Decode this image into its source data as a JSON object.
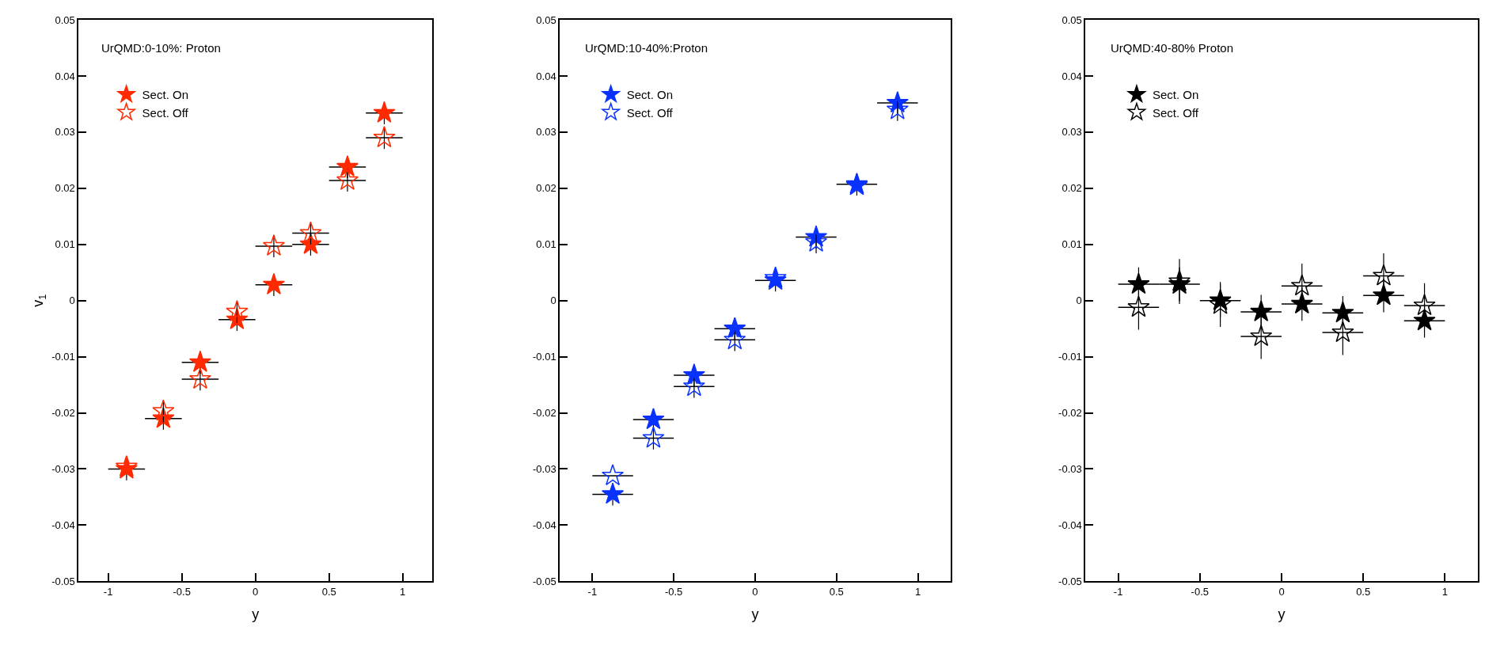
{
  "chart_data": [
    {
      "type": "scatter",
      "title": "UrQMD:0-10%: Proton",
      "xlabel": "y",
      "ylabel": "v$_{1}$",
      "x": [
        -0.875,
        -0.625,
        -0.375,
        -0.125,
        0.125,
        0.375,
        0.625,
        0.875
      ],
      "legend": "top left",
      "xlim": [
        -1.2,
        1.2
      ],
      "ylim": [
        -0.05,
        0.05
      ],
      "xticks": [
        -1,
        -0.5,
        0,
        0.5,
        1
      ],
      "yticks": [
        -0.05,
        -0.04,
        -0.03,
        -0.02,
        -0.01,
        0,
        0.01,
        0.02,
        0.03,
        0.04,
        0.05
      ],
      "series": [
        {
          "name": "Sect. On",
          "color": "#ff2a00",
          "marker": "star",
          "values": [
            -0.03,
            -0.021,
            -0.011,
            -0.0034,
            0.0028,
            0.01,
            0.0238,
            0.0334
          ],
          "errors": [
            0.002,
            0.002,
            0.002,
            0.002,
            0.002,
            0.002,
            0.002,
            0.002
          ],
          "xerrors": [
            0.125,
            0.125,
            0.125,
            0.125,
            0.125,
            0.125,
            0.125,
            0.125
          ]
        },
        {
          "name": "Sect. Off",
          "color": "#ff2a00",
          "marker": "star-open",
          "values": [
            -0.0296,
            -0.0197,
            -0.014,
            -0.002,
            0.0097,
            0.012,
            0.0214,
            0.029
          ],
          "errors": [
            null,
            0.002,
            0.002,
            0.002,
            0.002,
            0.002,
            0.002,
            0.002
          ],
          "xerrors": [
            null,
            null,
            0.125,
            null,
            0.125,
            0.125,
            0.125,
            0.125
          ]
        }
      ]
    },
    {
      "type": "scatter",
      "title": "UrQMD:10-40%:Proton",
      "xlabel": "y",
      "x": [
        -0.875,
        -0.625,
        -0.375,
        -0.125,
        0.125,
        0.375,
        0.625,
        0.875
      ],
      "legend": "top left",
      "xlim": [
        -1.2,
        1.2
      ],
      "ylim": [
        -0.05,
        0.05
      ],
      "xticks": [
        -1,
        -0.5,
        0,
        0.5,
        1
      ],
      "yticks": [
        -0.05,
        -0.04,
        -0.03,
        -0.02,
        -0.01,
        0,
        0.01,
        0.02,
        0.03,
        0.04,
        0.05
      ],
      "series": [
        {
          "name": "Sect. On",
          "color": "#0a32ff",
          "marker": "star",
          "values": [
            -0.0345,
            -0.0212,
            -0.0133,
            -0.005,
            0.0036,
            0.0113,
            0.0207,
            0.0352
          ],
          "errors": [
            0.002,
            0.002,
            0.002,
            0.002,
            0.002,
            0.002,
            0.002,
            0.002
          ],
          "xerrors": [
            0.125,
            0.125,
            0.125,
            0.125,
            0.125,
            0.125,
            0.125,
            0.125
          ]
        },
        {
          "name": "Sect. Off",
          "color": "#0a32ff",
          "marker": "star-open",
          "values": [
            -0.0312,
            -0.0245,
            -0.0153,
            -0.007,
            0.004,
            0.0104,
            0.0205,
            0.034
          ],
          "errors": [
            null,
            0.002,
            0.002,
            0.002,
            null,
            0.002,
            null,
            0.002
          ],
          "xerrors": [
            0.125,
            0.125,
            0.125,
            0.125,
            null,
            null,
            null,
            null
          ]
        }
      ]
    },
    {
      "type": "scatter",
      "title": "UrQMD:40-80% Proton",
      "xlabel": "y",
      "x": [
        -0.875,
        -0.625,
        -0.375,
        -0.125,
        0.125,
        0.375,
        0.625,
        0.875
      ],
      "legend": "top left",
      "xlim": [
        -1.2,
        1.2
      ],
      "ylim": [
        -0.05,
        0.05
      ],
      "xticks": [
        -1,
        -0.5,
        0,
        0.5,
        1
      ],
      "yticks": [
        -0.05,
        -0.04,
        -0.03,
        -0.02,
        -0.01,
        0,
        0.01,
        0.02,
        0.03,
        0.04,
        0.05
      ],
      "series": [
        {
          "name": "Sect. On",
          "color": "#000000",
          "marker": "star",
          "values": [
            0.0029,
            0.0029,
            0.0,
            -0.002,
            -0.0006,
            -0.0022,
            0.0009,
            -0.0036
          ],
          "errors": [
            0.003,
            0.003,
            0.003,
            0.003,
            0.003,
            0.003,
            0.003,
            0.003
          ],
          "xerrors": [
            0.125,
            0.125,
            0.125,
            0.125,
            0.125,
            0.125,
            0.125,
            0.125
          ]
        },
        {
          "name": "Sect. Off",
          "color": "#000000",
          "marker": "star-open",
          "values": [
            -0.0012,
            0.0034,
            -0.0007,
            -0.0064,
            0.0026,
            -0.0057,
            0.0044,
            -0.0009
          ],
          "errors": [
            0.004,
            0.004,
            0.004,
            0.004,
            0.004,
            0.004,
            0.004,
            0.004
          ],
          "xerrors": [
            0.125,
            null,
            null,
            0.125,
            0.125,
            0.125,
            0.125,
            0.125
          ]
        }
      ]
    }
  ]
}
